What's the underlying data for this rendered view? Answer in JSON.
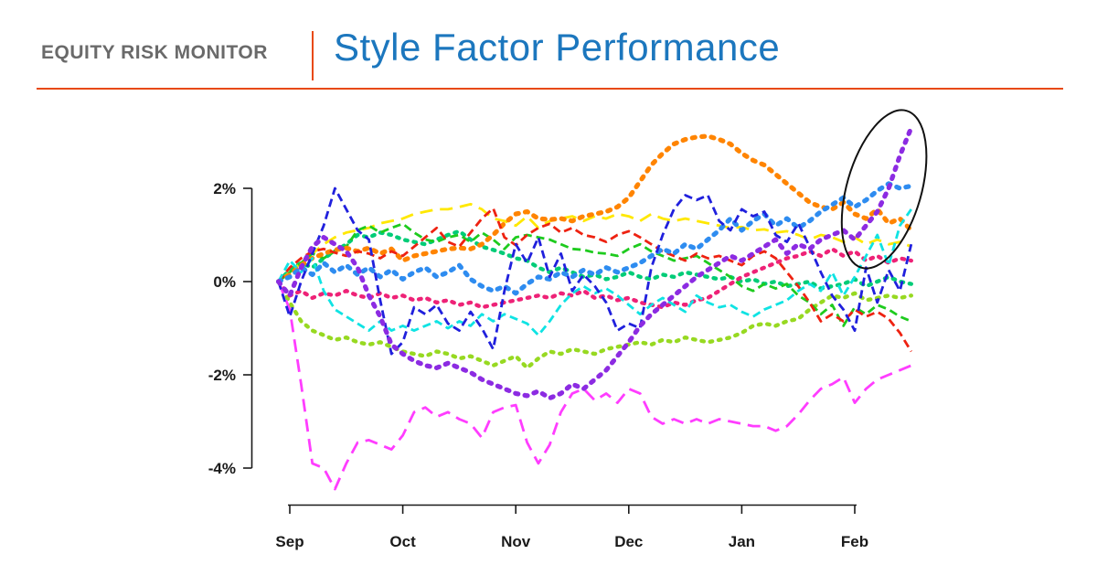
{
  "page": {
    "background": "#ffffff"
  },
  "header": {
    "kicker": "EQUITY RISK MONITOR",
    "title": "Style Factor Performance",
    "kicker_color": "#6a6a6a",
    "title_color": "#1c77be",
    "accent_rule_color": "#e8490f"
  },
  "chart_data": {
    "type": "line",
    "title": "Style Factor Performance",
    "xlabel": "",
    "ylabel": "",
    "x_tick_labels": [
      "Sep",
      "Oct",
      "Nov",
      "Dec",
      "Jan",
      "Feb"
    ],
    "y_ticks": [
      2,
      0,
      -2,
      -4
    ],
    "y_tick_labels": [
      "2%",
      "0%",
      "-2%",
      "-4%"
    ],
    "ylim": [
      -4.7,
      3.6
    ],
    "xlim_months": [
      -0.15,
      5.55
    ],
    "grid": false,
    "legend": "none",
    "axis_color": "#1a1a1a",
    "sample_start": -0.1,
    "sample_step": 0.1,
    "annotation": {
      "type": "ellipse",
      "note": "hand-drawn oval highlighting the late-period spike",
      "cx_month": 5.26,
      "cy_pct": 1.98,
      "rx_month": 0.33,
      "ry_pct": 1.75,
      "rotate_deg": 16,
      "color": "#111111"
    },
    "series": [
      {
        "name": "lime-dotted",
        "color": "#97d921",
        "style": "dot",
        "values": [
          0,
          -0.45,
          -0.85,
          -1.05,
          -1.15,
          -1.25,
          -1.2,
          -1.3,
          -1.35,
          -1.3,
          -1.4,
          -1.5,
          -1.55,
          -1.6,
          -1.5,
          -1.55,
          -1.65,
          -1.6,
          -1.7,
          -1.8,
          -1.7,
          -1.6,
          -1.85,
          -1.65,
          -1.5,
          -1.55,
          -1.45,
          -1.5,
          -1.55,
          -1.45,
          -1.4,
          -1.35,
          -1.3,
          -1.35,
          -1.25,
          -1.3,
          -1.2,
          -1.25,
          -1.3,
          -1.25,
          -1.2,
          -1.1,
          -0.95,
          -0.9,
          -0.95,
          -0.85,
          -0.8,
          -0.6,
          -0.45,
          -0.3,
          -0.35,
          -0.25,
          -0.4,
          -0.35,
          -0.3,
          -0.35,
          -0.3
        ]
      },
      {
        "name": "springgreen-dotted",
        "color": "#00cc77",
        "style": "dot",
        "values": [
          0,
          0.25,
          0.4,
          0.3,
          0.5,
          0.65,
          0.8,
          1,
          0.95,
          1.05,
          1,
          0.9,
          0.85,
          0.8,
          0.9,
          1,
          1.08,
          0.9,
          0.75,
          0.68,
          0.6,
          0.5,
          0.45,
          0.3,
          0.2,
          0.3,
          0.2,
          0.1,
          0.15,
          0.05,
          0.1,
          0.2,
          0.1,
          0.05,
          0.15,
          0.1,
          0.2,
          0.15,
          0.1,
          0.05,
          0.1,
          0,
          0.05,
          -0.05,
          0,
          -0.1,
          -0.05,
          0,
          -0.15,
          -0.1,
          -0.05,
          0.05,
          -0.1,
          0,
          0.1,
          0,
          -0.05
        ]
      },
      {
        "name": "deeppink-dotted",
        "color": "#ee2277",
        "style": "dot",
        "values": [
          0,
          -0.3,
          -0.2,
          -0.35,
          -0.25,
          -0.3,
          -0.2,
          -0.3,
          -0.35,
          -0.25,
          -0.35,
          -0.3,
          -0.4,
          -0.35,
          -0.45,
          -0.4,
          -0.5,
          -0.45,
          -0.55,
          -0.5,
          -0.45,
          -0.4,
          -0.35,
          -0.3,
          -0.35,
          -0.25,
          -0.3,
          -0.2,
          -0.35,
          -0.3,
          -0.4,
          -0.35,
          -0.45,
          -0.5,
          -0.55,
          -0.45,
          -0.5,
          -0.4,
          -0.35,
          -0.2,
          -0.05,
          0.1,
          0.2,
          0.3,
          0.4,
          0.5,
          0.55,
          0.65,
          0.55,
          0.7,
          0.55,
          0.65,
          0.45,
          0.55,
          0.4,
          0.5,
          0.45
        ]
      },
      {
        "name": "yellow-dashed",
        "color": "#ffe800",
        "style": "dash-long",
        "values": [
          0,
          0.2,
          0.4,
          0.6,
          0.8,
          0.95,
          1.05,
          1.1,
          1.15,
          1.25,
          1.3,
          1.35,
          1.45,
          1.5,
          1.55,
          1.55,
          1.6,
          1.66,
          1.55,
          1.35,
          1.3,
          1.2,
          1.4,
          1.15,
          1.3,
          1.35,
          1.4,
          1.3,
          1.4,
          1.35,
          1.45,
          1.4,
          1.3,
          1.45,
          1.35,
          1.3,
          1.35,
          1.3,
          1.25,
          1.2,
          1.15,
          1.17,
          1.1,
          1.12,
          1.05,
          1.08,
          1,
          0.9,
          1,
          0.95,
          0.85,
          0.95,
          0.8,
          0.9,
          0.8,
          0.85,
          0.75
        ]
      },
      {
        "name": "green-dashed",
        "color": "#1ecb1e",
        "style": "dash",
        "values": [
          0,
          0.2,
          0.4,
          0.6,
          0.5,
          0.65,
          0.75,
          1.1,
          1.2,
          1.05,
          1.15,
          1.24,
          1.05,
          0.9,
          0.85,
          0.95,
          1,
          0.85,
          1.05,
          0.9,
          0.7,
          0.95,
          1,
          0.95,
          0.9,
          0.8,
          0.7,
          0.68,
          0.62,
          0.6,
          0.55,
          0.7,
          0.8,
          0.65,
          0.55,
          0.45,
          0.5,
          0.55,
          0.4,
          0.25,
          0.1,
          -0.1,
          -0.2,
          -0.05,
          -0.15,
          -0.05,
          -0.3,
          -0.45,
          -0.7,
          -0.5,
          -0.95,
          -0.55,
          -0.7,
          -0.5,
          -0.6,
          -0.75,
          -0.85
        ]
      },
      {
        "name": "orange-dotted",
        "color": "#ff8400",
        "style": "dot-thick",
        "values": [
          0,
          0.15,
          0.35,
          0.5,
          0.6,
          0.68,
          0.72,
          0.65,
          0.72,
          0.6,
          0.7,
          0.45,
          0.55,
          0.6,
          0.65,
          0.7,
          0.72,
          0.7,
          0.8,
          1,
          1.25,
          1.45,
          1.5,
          1.35,
          1.33,
          1.35,
          1.3,
          1.4,
          1.45,
          1.5,
          1.6,
          1.8,
          2.15,
          2.5,
          2.75,
          2.95,
          3.05,
          3.1,
          3.12,
          3.05,
          2.95,
          2.75,
          2.6,
          2.5,
          2.3,
          2.1,
          1.9,
          1.7,
          1.6,
          1.55,
          1.7,
          1.45,
          1.35,
          1.55,
          1.25,
          1.35,
          1.1
        ]
      },
      {
        "name": "red-dashed",
        "color": "#ee2211",
        "style": "dash",
        "values": [
          0,
          0.3,
          0.5,
          0.65,
          0.7,
          0.62,
          0.55,
          0.65,
          0.6,
          0.5,
          0.65,
          0.55,
          0.75,
          0.95,
          1.15,
          0.85,
          0.75,
          1.05,
          1.35,
          1.57,
          0.95,
          0.78,
          1,
          1.15,
          1.24,
          1.05,
          1.15,
          1,
          0.95,
          0.85,
          1,
          1.08,
          0.95,
          0.8,
          0.65,
          0.55,
          0.45,
          0.6,
          0.5,
          0.55,
          0.45,
          0.35,
          0.55,
          0.65,
          0.5,
          0.2,
          -0.1,
          -0.45,
          -0.85,
          -0.7,
          -0.85,
          -0.6,
          -0.75,
          -0.65,
          -0.8,
          -1.1,
          -1.5
        ]
      },
      {
        "name": "cyan-dashed",
        "color": "#0fe3e3",
        "style": "dash",
        "values": [
          0,
          0.45,
          0.2,
          0.5,
          -0.2,
          -0.6,
          -0.75,
          -0.9,
          -1.05,
          -0.85,
          -1.05,
          -0.95,
          -1.05,
          -0.95,
          -0.85,
          -1,
          -0.85,
          -0.95,
          -0.7,
          -0.85,
          -0.7,
          -0.8,
          -0.9,
          -1.15,
          -0.85,
          -0.5,
          -0.25,
          -0.1,
          -0.25,
          -0.15,
          -0.3,
          -0.5,
          -0.7,
          -0.5,
          -0.35,
          -0.5,
          -0.65,
          -0.3,
          -0.45,
          -0.55,
          -0.5,
          -0.65,
          -0.75,
          -0.6,
          -0.5,
          -0.4,
          -0.2,
          -0.05,
          -0.2,
          0.2,
          -0.3,
          0.1,
          0.55,
          1,
          0.35,
          1.2,
          1.55
        ]
      },
      {
        "name": "dodgerblue-dotted",
        "color": "#2e8cf0",
        "style": "dot-thick",
        "values": [
          0,
          0.1,
          0.3,
          0.15,
          0.4,
          0.2,
          0.35,
          0.15,
          0.3,
          0.1,
          0.25,
          0.05,
          0.2,
          0.3,
          0.1,
          0.2,
          0.35,
          0.05,
          -0.1,
          -0.2,
          -0.1,
          -0.25,
          -0.05,
          0.1,
          0.05,
          0.2,
          0.1,
          0.25,
          0.15,
          0.3,
          0.2,
          0.3,
          0.4,
          0.55,
          0.7,
          0.6,
          0.8,
          0.7,
          0.9,
          1.1,
          1.35,
          1.1,
          1.3,
          1.45,
          1.2,
          1.35,
          1.15,
          1.3,
          1.5,
          1.65,
          1.8,
          1.6,
          1.75,
          1.95,
          2.1,
          2,
          2.05
        ]
      },
      {
        "name": "magenta-dashed",
        "color": "#ff3dff",
        "style": "dash-long",
        "values": [
          0,
          -0.6,
          -2.2,
          -3.9,
          -4,
          -4.45,
          -3.9,
          -3.45,
          -3.4,
          -3.5,
          -3.6,
          -3.3,
          -2.8,
          -2.7,
          -2.9,
          -2.8,
          -2.95,
          -3.05,
          -3.35,
          -2.8,
          -2.7,
          -2.65,
          -3.45,
          -3.9,
          -3.5,
          -2.8,
          -2.4,
          -2.3,
          -2.55,
          -2.4,
          -2.6,
          -2.3,
          -2.4,
          -2.9,
          -3.05,
          -2.95,
          -3.05,
          -2.95,
          -3.05,
          -2.95,
          -3,
          -3.05,
          -3.1,
          -3.1,
          -3.2,
          -3.1,
          -2.85,
          -2.55,
          -2.3,
          -2.2,
          -2.05,
          -2.6,
          -2.3,
          -2.1,
          -2,
          -1.9,
          -1.8
        ]
      },
      {
        "name": "blue-dashed",
        "color": "#2020dd",
        "style": "dash",
        "values": [
          0,
          -0.75,
          0,
          0.6,
          1.2,
          2,
          1.55,
          1.1,
          0.9,
          -0.4,
          -1.55,
          -1.3,
          -0.55,
          -0.7,
          -0.5,
          -0.9,
          -1.05,
          -0.65,
          -1,
          -1.45,
          -0.2,
          0.8,
          0.4,
          0.95,
          0.1,
          0.6,
          -0.2,
          0.15,
          -0.1,
          -0.45,
          -1.05,
          -0.9,
          -1,
          0.3,
          1,
          1.55,
          1.85,
          1.75,
          1.85,
          1.3,
          1.1,
          1.55,
          1.4,
          1.5,
          1,
          0.85,
          1.25,
          0.75,
          0.2,
          -0.3,
          -0.6,
          -1.05,
          0.3,
          -0.45,
          0.25,
          -0.2,
          0.8
        ]
      },
      {
        "name": "purple-dotted",
        "color": "#8c2be2",
        "style": "dot-thick",
        "values": [
          0,
          -0.3,
          0.3,
          0.75,
          0.95,
          0.8,
          0.65,
          0.3,
          -0.3,
          -0.75,
          -1.35,
          -1.55,
          -1.7,
          -1.8,
          -1.85,
          -1.75,
          -1.85,
          -1.95,
          -2.1,
          -2.2,
          -2.3,
          -2.4,
          -2.45,
          -2.35,
          -2.5,
          -2.4,
          -2.2,
          -2.3,
          -2.1,
          -1.9,
          -1.6,
          -1.3,
          -0.95,
          -0.7,
          -0.5,
          -0.3,
          -0.1,
          0.1,
          0.25,
          0.4,
          0.55,
          0.45,
          0.6,
          0.75,
          0.9,
          0.6,
          0.8,
          0.7,
          0.9,
          1,
          1.1,
          0.9,
          1.2,
          1.5,
          2,
          2.7,
          3.3
        ]
      }
    ]
  }
}
